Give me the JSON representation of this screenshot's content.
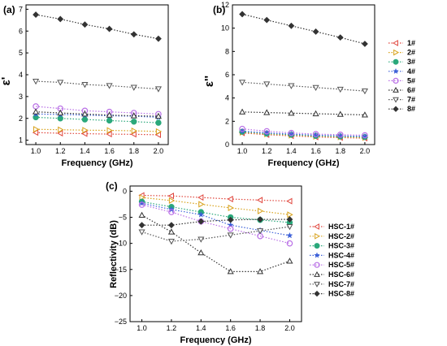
{
  "chart_data": [
    {
      "type": "line",
      "panel_label": "(a)",
      "xlabel": "Frequency (GHz)",
      "ylabel": "ε'",
      "x": [
        1.0,
        1.2,
        1.4,
        1.6,
        1.8,
        2.0
      ],
      "xticks": [
        "1.0",
        "1.2",
        "1.4",
        "1.6",
        "1.8",
        "2.0"
      ],
      "xlim": [
        0.92,
        2.08
      ],
      "ylim": [
        0.8,
        7.2
      ],
      "yticks": [
        1,
        2,
        3,
        4,
        5,
        6,
        7
      ],
      "grid": false,
      "legend": null,
      "series": [
        {
          "name": "1#",
          "marker": "tri-left",
          "color": "#e0453c",
          "values": [
            1.35,
            1.32,
            1.3,
            1.28,
            1.27,
            1.25
          ]
        },
        {
          "name": "2#",
          "marker": "tri-right",
          "color": "#d8a21c",
          "values": [
            1.5,
            1.48,
            1.46,
            1.45,
            1.43,
            1.4
          ]
        },
        {
          "name": "3#",
          "marker": "circle",
          "color": "#2aa87b",
          "values": [
            2.05,
            2.0,
            1.95,
            1.9,
            1.85,
            1.8
          ]
        },
        {
          "name": "4#",
          "marker": "star",
          "color": "#3b5fd8",
          "values": [
            2.2,
            2.18,
            2.15,
            2.12,
            2.1,
            2.05
          ]
        },
        {
          "name": "5#",
          "marker": "circle-open",
          "color": "#b96fe6",
          "values": [
            2.55,
            2.45,
            2.35,
            2.3,
            2.25,
            2.2
          ]
        },
        {
          "name": "6#",
          "marker": "tri-up-open",
          "color": "#333333",
          "values": [
            2.3,
            2.25,
            2.2,
            2.15,
            2.12,
            2.1
          ]
        },
        {
          "name": "7#",
          "marker": "tri-down",
          "color": "#555555",
          "values": [
            3.7,
            3.65,
            3.55,
            3.5,
            3.42,
            3.35
          ]
        },
        {
          "name": "8#",
          "marker": "diamond",
          "color": "#333333",
          "values": [
            6.75,
            6.55,
            6.3,
            6.1,
            5.85,
            5.65
          ]
        }
      ]
    },
    {
      "type": "line",
      "panel_label": "(b)",
      "xlabel": "Frequency (GHz)",
      "ylabel": "ε''",
      "x": [
        1.0,
        1.2,
        1.4,
        1.6,
        1.8,
        2.0
      ],
      "xticks": [
        "1.0",
        "1.2",
        "1.4",
        "1.6",
        "1.8",
        "2.0"
      ],
      "xlim": [
        0.92,
        2.08
      ],
      "ylim": [
        0,
        12
      ],
      "yticks": [
        0,
        2,
        4,
        6,
        8,
        10,
        12
      ],
      "grid": false,
      "legend": "right",
      "series": [
        {
          "name": "1#",
          "marker": "tri-left",
          "color": "#e0453c",
          "values": [
            1.0,
            0.85,
            0.75,
            0.65,
            0.6,
            0.55
          ]
        },
        {
          "name": "2#",
          "marker": "tri-right",
          "color": "#d8a21c",
          "values": [
            1.05,
            0.9,
            0.8,
            0.7,
            0.65,
            0.6
          ]
        },
        {
          "name": "3#",
          "marker": "circle",
          "color": "#2aa87b",
          "values": [
            1.1,
            0.95,
            0.85,
            0.75,
            0.7,
            0.65
          ]
        },
        {
          "name": "4#",
          "marker": "star",
          "color": "#3b5fd8",
          "values": [
            1.15,
            1.0,
            0.9,
            0.8,
            0.75,
            0.7
          ]
        },
        {
          "name": "5#",
          "marker": "circle-open",
          "color": "#b96fe6",
          "values": [
            1.35,
            1.15,
            1.0,
            0.9,
            0.85,
            0.8
          ]
        },
        {
          "name": "6#",
          "marker": "tri-up-open",
          "color": "#333333",
          "values": [
            2.8,
            2.75,
            2.7,
            2.65,
            2.6,
            2.55
          ]
        },
        {
          "name": "7#",
          "marker": "tri-down",
          "color": "#555555",
          "values": [
            5.35,
            5.2,
            5.05,
            4.9,
            4.75,
            4.6
          ]
        },
        {
          "name": "8#",
          "marker": "diamond",
          "color": "#333333",
          "values": [
            11.2,
            10.7,
            10.2,
            9.7,
            9.2,
            8.65
          ]
        }
      ]
    },
    {
      "type": "line",
      "panel_label": "(c)",
      "xlabel": "Frequency (GHz)",
      "ylabel": "Reflectivity (dB)",
      "x": [
        1.0,
        1.2,
        1.4,
        1.6,
        1.8,
        2.0
      ],
      "xticks": [
        "1.0",
        "1.2",
        "1.4",
        "1.6",
        "1.8",
        "2.0"
      ],
      "xlim": [
        0.92,
        2.08
      ],
      "ylim": [
        -25,
        1
      ],
      "yticks": [
        0,
        -5,
        -10,
        -15,
        -20,
        -25
      ],
      "yticklabels": [
        "0",
        "−5",
        "−10",
        "−15",
        "−20",
        "−25"
      ],
      "grid": false,
      "legend": "right",
      "series": [
        {
          "name": "HSC-1#",
          "marker": "tri-left",
          "color": "#e0453c",
          "values": [
            -0.8,
            -0.9,
            -1.2,
            -1.5,
            -1.7,
            -1.9
          ]
        },
        {
          "name": "HSC-2#",
          "marker": "tri-right",
          "color": "#d8a21c",
          "values": [
            -1.2,
            -1.8,
            -2.5,
            -3.2,
            -3.8,
            -4.5
          ]
        },
        {
          "name": "HSC-3#",
          "marker": "circle",
          "color": "#2aa87b",
          "values": [
            -2.0,
            -3.0,
            -4.0,
            -5.0,
            -5.5,
            -6.0
          ]
        },
        {
          "name": "HSC-4#",
          "marker": "star",
          "color": "#3b5fd8",
          "values": [
            -2.3,
            -3.5,
            -4.5,
            -6.5,
            -7.5,
            -8.5
          ]
        },
        {
          "name": "HSC-5#",
          "marker": "circle-open",
          "color": "#b96fe6",
          "values": [
            -2.6,
            -4.0,
            -5.8,
            -7.2,
            -8.6,
            -10.0
          ]
        },
        {
          "name": "HSC-6#",
          "marker": "tri-up-open",
          "color": "#333333",
          "values": [
            -4.6,
            -7.8,
            -11.8,
            -15.4,
            -15.4,
            -13.4
          ]
        },
        {
          "name": "HSC-7#",
          "marker": "tri-down",
          "color": "#555555",
          "values": [
            -7.8,
            -9.6,
            -9.2,
            -8.4,
            -7.6,
            -6.8
          ]
        },
        {
          "name": "HSC-8#",
          "marker": "diamond",
          "color": "#333333",
          "values": [
            -6.5,
            -6.5,
            -5.8,
            -5.5,
            -5.4,
            -5.4
          ]
        }
      ]
    }
  ]
}
